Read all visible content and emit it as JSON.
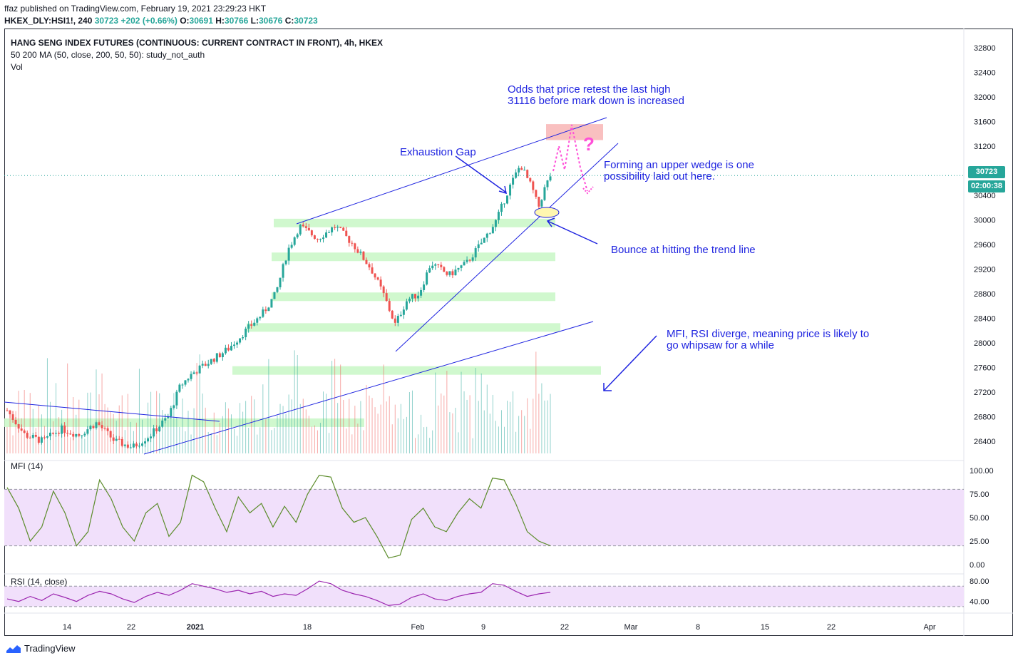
{
  "header": {
    "published": "ffaz published on TradingView.com, February 19, 2021 23:29:23 HKT",
    "symbol": "HKEX_DLY:HSI1!, 240",
    "last": "30723",
    "change": "+202 (+0.66%)",
    "o_label": "O:",
    "o": "30691",
    "h_label": "H:",
    "h": "30766",
    "l_label": "L:",
    "l": "30676",
    "c_label": "C:",
    "c": "30723"
  },
  "legend": {
    "title": "HANG SENG INDEX FUTURES (CONTINUOUS: CURRENT CONTRACT IN FRONT), 4h, HKEX",
    "ma": "50 200 MA (50, close, 200, 50, 50): study_not_auth",
    "vol": "Vol",
    "mfi": "MFI (14)",
    "rsi": "RSI (14, close)"
  },
  "badges": {
    "price": "30723",
    "countdown": "02:00:38"
  },
  "annotations": {
    "odds_line1": "Odds that price retest the last high",
    "odds_line2": "31116 before mark down is increased",
    "exhaustion": "Exhaustion Gap",
    "wedge_line1": "Forming an upper wedge is one",
    "wedge_line2": "possibility laid out here.",
    "bounce": "Bounce at hitting the trend line",
    "mfi_line1": "MFI, RSI diverge, meaning price is likely to",
    "mfi_line2": "go whipsaw for a while",
    "question": "?"
  },
  "footer": {
    "brand": "TradingView"
  },
  "colors": {
    "up": "#26a69a",
    "down": "#ef5350",
    "annotation": "#1f24e0",
    "zone": "#c8f7c5",
    "target_zone": "#f9c0c0",
    "oscillator": "#5b8c2a",
    "rsi": "#9c27b0",
    "band": "#f1e0fb"
  },
  "chart_data": [
    {
      "type": "candlestick",
      "title": "HANG SENG INDEX FUTURES (CONTINUOUS: CURRENT CONTRACT IN FRONT), 4h, HKEX",
      "ylim": [
        26200,
        33000
      ],
      "y_ticks": [
        26400,
        26800,
        27200,
        27600,
        28000,
        28400,
        28800,
        29200,
        29600,
        30000,
        30400,
        30800,
        31200,
        31600,
        32000,
        32400,
        32800
      ],
      "x_ticks": [
        "14",
        "22",
        "2021",
        "18",
        "Feb",
        "9",
        "22",
        "Mar",
        "8",
        "15",
        "22",
        "Apr"
      ],
      "close_path": [
        {
          "t": 0,
          "v": 26900
        },
        {
          "t": 3,
          "v": 26500
        },
        {
          "t": 6,
          "v": 26400
        },
        {
          "t": 9,
          "v": 26600
        },
        {
          "t": 12,
          "v": 26500
        },
        {
          "t": 15,
          "v": 26700
        },
        {
          "t": 18,
          "v": 26400
        },
        {
          "t": 21,
          "v": 26300
        },
        {
          "t": 24,
          "v": 26500
        },
        {
          "t": 27,
          "v": 26800
        },
        {
          "t": 29,
          "v": 27300
        },
        {
          "t": 31,
          "v": 27500
        },
        {
          "t": 34,
          "v": 27700
        },
        {
          "t": 37,
          "v": 27900
        },
        {
          "t": 40,
          "v": 28200
        },
        {
          "t": 43,
          "v": 28500
        },
        {
          "t": 45,
          "v": 28800
        },
        {
          "t": 47,
          "v": 29500
        },
        {
          "t": 49,
          "v": 29900
        },
        {
          "t": 52,
          "v": 29700
        },
        {
          "t": 55,
          "v": 29900
        },
        {
          "t": 58,
          "v": 29600
        },
        {
          "t": 61,
          "v": 29200
        },
        {
          "t": 63,
          "v": 28800
        },
        {
          "t": 65,
          "v": 28300
        },
        {
          "t": 67,
          "v": 28700
        },
        {
          "t": 69,
          "v": 28800
        },
        {
          "t": 71,
          "v": 29300
        },
        {
          "t": 74,
          "v": 29100
        },
        {
          "t": 77,
          "v": 29300
        },
        {
          "t": 80,
          "v": 29700
        },
        {
          "t": 82,
          "v": 30000
        },
        {
          "t": 84,
          "v": 30500
        },
        {
          "t": 86,
          "v": 30900
        },
        {
          "t": 88,
          "v": 30500
        },
        {
          "t": 89,
          "v": 30200
        },
        {
          "t": 90,
          "v": 30500
        },
        {
          "t": 91,
          "v": 30723
        }
      ],
      "last_price": 30723,
      "support_zones": [
        26700,
        27550,
        28250,
        28750,
        29400,
        29950
      ],
      "target_zone": [
        31300,
        31560
      ]
    },
    {
      "type": "line",
      "title": "MFI (14)",
      "ylim": [
        0,
        100
      ],
      "y_ticks": [
        0,
        25,
        50,
        75,
        100
      ],
      "band": [
        20,
        80
      ],
      "values": [
        82,
        60,
        25,
        40,
        78,
        55,
        20,
        35,
        90,
        70,
        40,
        25,
        55,
        65,
        30,
        45,
        95,
        88,
        60,
        35,
        72,
        55,
        65,
        40,
        62,
        45,
        75,
        95,
        93,
        60,
        45,
        50,
        30,
        7,
        10,
        48,
        60,
        40,
        35,
        55,
        70,
        60,
        92,
        90,
        65,
        35,
        25,
        20
      ]
    },
    {
      "type": "line",
      "title": "RSI (14, close)",
      "ylim": [
        20,
        90
      ],
      "y_ticks": [
        40,
        80
      ],
      "band": [
        30,
        70
      ],
      "values": [
        45,
        40,
        50,
        42,
        55,
        48,
        40,
        52,
        60,
        55,
        45,
        38,
        50,
        58,
        52,
        62,
        75,
        70,
        65,
        58,
        62,
        55,
        60,
        50,
        55,
        52,
        65,
        80,
        75,
        62,
        55,
        50,
        42,
        32,
        35,
        48,
        55,
        45,
        42,
        50,
        55,
        58,
        75,
        72,
        60,
        50,
        55,
        58
      ]
    }
  ]
}
